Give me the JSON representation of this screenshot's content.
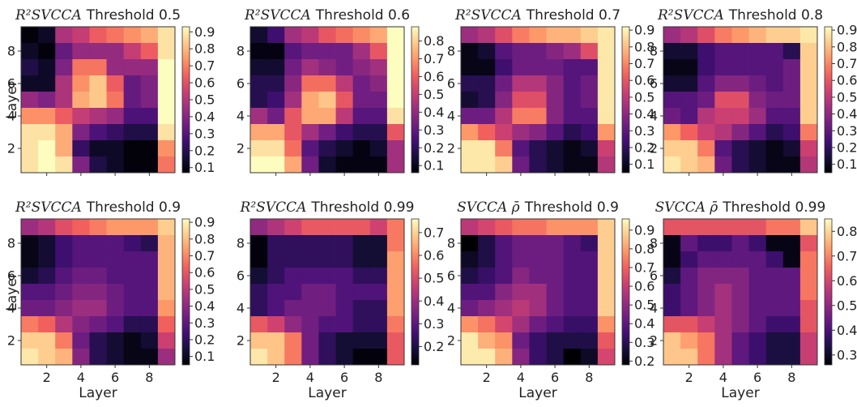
{
  "figure": {
    "xlabel": "Layer",
    "ylabel": "Layer"
  },
  "colormap": [
    "#000004",
    "#180f3d",
    "#440f76",
    "#721f81",
    "#9e2f7f",
    "#cd4071",
    "#f1605d",
    "#fd9668",
    "#feca8d",
    "#fcfdbf"
  ],
  "chart_data": [
    {
      "type": "heatmap",
      "title_prefix": "R²SVCCA",
      "title_text": "Threshold 0.5",
      "xlabel": "",
      "ylabel": "Layer",
      "x_ticks": [
        2,
        4,
        6,
        8
      ],
      "y_ticks": [
        2,
        4,
        6,
        8
      ],
      "colorbar": {
        "min": 0.07,
        "max": 0.93,
        "ticks": [
          0.1,
          0.2,
          0.3,
          0.4,
          0.5,
          0.6,
          0.7,
          0.8,
          0.9
        ]
      },
      "matrix": [
        [
          0.08,
          0.13,
          0.48,
          0.53,
          0.63,
          0.68,
          0.73,
          0.78,
          0.88
        ],
        [
          0.13,
          0.08,
          0.33,
          0.43,
          0.43,
          0.43,
          0.53,
          0.63,
          0.88
        ],
        [
          0.18,
          0.13,
          0.38,
          0.68,
          0.68,
          0.43,
          0.43,
          0.43,
          0.93
        ],
        [
          0.13,
          0.13,
          0.48,
          0.73,
          0.83,
          0.63,
          0.33,
          0.38,
          0.93
        ],
        [
          0.43,
          0.38,
          0.48,
          0.78,
          0.83,
          0.68,
          0.33,
          0.38,
          0.93
        ],
        [
          0.73,
          0.73,
          0.63,
          0.53,
          0.48,
          0.43,
          0.28,
          0.28,
          0.93
        ],
        [
          0.88,
          0.88,
          0.78,
          0.38,
          0.28,
          0.23,
          0.18,
          0.18,
          0.88
        ],
        [
          0.88,
          0.93,
          0.78,
          0.23,
          0.13,
          0.13,
          0.08,
          0.08,
          0.73
        ],
        [
          0.88,
          0.93,
          0.88,
          0.38,
          0.18,
          0.13,
          0.08,
          0.08,
          0.68
        ]
      ]
    },
    {
      "type": "heatmap",
      "title_prefix": "R²SVCCA",
      "title_text": "Threshold 0.6",
      "xlabel": "",
      "ylabel": "",
      "x_ticks": [
        2,
        4,
        6,
        8
      ],
      "y_ticks": [
        2,
        4,
        6,
        8
      ],
      "colorbar": {
        "min": 0.06,
        "max": 0.88,
        "ticks": [
          0.1,
          0.2,
          0.3,
          0.4,
          0.5,
          0.6,
          0.7,
          0.8
        ]
      },
      "matrix": [
        [
          0.13,
          0.23,
          0.43,
          0.48,
          0.58,
          0.63,
          0.68,
          0.73,
          0.88
        ],
        [
          0.08,
          0.08,
          0.28,
          0.33,
          0.33,
          0.33,
          0.43,
          0.58,
          0.88
        ],
        [
          0.13,
          0.13,
          0.33,
          0.43,
          0.38,
          0.33,
          0.38,
          0.43,
          0.88
        ],
        [
          0.18,
          0.18,
          0.38,
          0.63,
          0.63,
          0.48,
          0.33,
          0.38,
          0.88
        ],
        [
          0.18,
          0.23,
          0.43,
          0.73,
          0.78,
          0.58,
          0.33,
          0.33,
          0.88
        ],
        [
          0.43,
          0.33,
          0.58,
          0.73,
          0.73,
          0.48,
          0.28,
          0.28,
          0.83
        ],
        [
          0.73,
          0.73,
          0.58,
          0.43,
          0.33,
          0.23,
          0.18,
          0.18,
          0.58
        ],
        [
          0.83,
          0.83,
          0.63,
          0.28,
          0.18,
          0.13,
          0.08,
          0.13,
          0.43
        ],
        [
          0.88,
          0.88,
          0.73,
          0.33,
          0.13,
          0.08,
          0.08,
          0.08,
          0.43
        ]
      ]
    },
    {
      "type": "heatmap",
      "title_prefix": "R²SVCCA",
      "title_text": "Threshold 0.7",
      "xlabel": "",
      "ylabel": "",
      "x_ticks": [
        2,
        4,
        6,
        8
      ],
      "y_ticks": [
        2,
        4,
        6,
        8
      ],
      "colorbar": {
        "min": 0.05,
        "max": 0.92,
        "ticks": [
          0.1,
          0.2,
          0.3,
          0.4,
          0.5,
          0.6,
          0.7,
          0.8,
          0.9
        ]
      },
      "matrix": [
        [
          0.43,
          0.48,
          0.58,
          0.68,
          0.73,
          0.78,
          0.78,
          0.83,
          0.88
        ],
        [
          0.08,
          0.13,
          0.28,
          0.33,
          0.33,
          0.38,
          0.43,
          0.58,
          0.88
        ],
        [
          0.08,
          0.08,
          0.23,
          0.33,
          0.33,
          0.33,
          0.28,
          0.28,
          0.88
        ],
        [
          0.18,
          0.18,
          0.33,
          0.48,
          0.48,
          0.38,
          0.28,
          0.33,
          0.88
        ],
        [
          0.13,
          0.18,
          0.38,
          0.58,
          0.58,
          0.38,
          0.28,
          0.33,
          0.88
        ],
        [
          0.33,
          0.33,
          0.48,
          0.68,
          0.68,
          0.38,
          0.28,
          0.28,
          0.88
        ],
        [
          0.73,
          0.63,
          0.53,
          0.43,
          0.38,
          0.28,
          0.18,
          0.23,
          0.73
        ],
        [
          0.88,
          0.88,
          0.68,
          0.28,
          0.18,
          0.13,
          0.08,
          0.13,
          0.53
        ],
        [
          0.88,
          0.88,
          0.83,
          0.33,
          0.18,
          0.13,
          0.08,
          0.08,
          0.48
        ]
      ]
    },
    {
      "type": "heatmap",
      "title_prefix": "R²SVCCA",
      "title_text": "Threshold 0.8",
      "xlabel": "",
      "ylabel": "",
      "x_ticks": [
        2,
        4,
        6,
        8
      ],
      "y_ticks": [
        2,
        4,
        6,
        8
      ],
      "colorbar": {
        "min": 0.05,
        "max": 0.92,
        "ticks": [
          0.1,
          0.2,
          0.3,
          0.4,
          0.5,
          0.6,
          0.7,
          0.8,
          0.9
        ]
      },
      "matrix": [
        [
          0.43,
          0.48,
          0.58,
          0.68,
          0.73,
          0.78,
          0.83,
          0.83,
          0.88
        ],
        [
          0.13,
          0.13,
          0.23,
          0.28,
          0.28,
          0.28,
          0.28,
          0.18,
          0.83
        ],
        [
          0.08,
          0.08,
          0.23,
          0.28,
          0.28,
          0.28,
          0.28,
          0.33,
          0.83
        ],
        [
          0.13,
          0.13,
          0.28,
          0.38,
          0.38,
          0.33,
          0.28,
          0.33,
          0.83
        ],
        [
          0.28,
          0.28,
          0.33,
          0.58,
          0.58,
          0.38,
          0.33,
          0.33,
          0.83
        ],
        [
          0.33,
          0.28,
          0.48,
          0.53,
          0.53,
          0.43,
          0.28,
          0.28,
          0.83
        ],
        [
          0.73,
          0.63,
          0.53,
          0.48,
          0.38,
          0.28,
          0.18,
          0.23,
          0.68
        ],
        [
          0.83,
          0.83,
          0.68,
          0.28,
          0.18,
          0.13,
          0.08,
          0.13,
          0.53
        ],
        [
          0.88,
          0.83,
          0.78,
          0.33,
          0.18,
          0.13,
          0.08,
          0.08,
          0.48
        ]
      ]
    },
    {
      "type": "heatmap",
      "title_prefix": "R²SVCCA",
      "title_text": "Threshold 0.9",
      "xlabel": "Layer",
      "ylabel": "Layer",
      "x_ticks": [
        2,
        4,
        6,
        8
      ],
      "y_ticks": [
        2,
        4,
        6,
        8
      ],
      "colorbar": {
        "min": 0.05,
        "max": 0.92,
        "ticks": [
          0.1,
          0.2,
          0.3,
          0.4,
          0.5,
          0.6,
          0.7,
          0.8,
          0.9
        ]
      },
      "matrix": [
        [
          0.43,
          0.48,
          0.58,
          0.63,
          0.68,
          0.73,
          0.73,
          0.73,
          0.83
        ],
        [
          0.08,
          0.13,
          0.23,
          0.28,
          0.28,
          0.28,
          0.23,
          0.18,
          0.78
        ],
        [
          0.08,
          0.13,
          0.23,
          0.28,
          0.28,
          0.28,
          0.28,
          0.28,
          0.78
        ],
        [
          0.13,
          0.18,
          0.28,
          0.33,
          0.33,
          0.28,
          0.28,
          0.28,
          0.78
        ],
        [
          0.28,
          0.28,
          0.33,
          0.38,
          0.38,
          0.33,
          0.28,
          0.28,
          0.78
        ],
        [
          0.33,
          0.33,
          0.38,
          0.43,
          0.43,
          0.33,
          0.28,
          0.28,
          0.73
        ],
        [
          0.68,
          0.63,
          0.48,
          0.38,
          0.33,
          0.28,
          0.18,
          0.18,
          0.63
        ],
        [
          0.83,
          0.83,
          0.68,
          0.33,
          0.18,
          0.13,
          0.08,
          0.13,
          0.53
        ],
        [
          0.88,
          0.83,
          0.78,
          0.38,
          0.18,
          0.13,
          0.08,
          0.08,
          0.43
        ]
      ]
    },
    {
      "type": "heatmap",
      "title_prefix": "R²SVCCA",
      "title_text": "Threshold 0.99",
      "xlabel": "Layer",
      "ylabel": "",
      "x_ticks": [
        2,
        4,
        6,
        8
      ],
      "y_ticks": [
        2,
        4,
        6,
        8
      ],
      "colorbar": {
        "min": 0.12,
        "max": 0.76,
        "ticks": [
          0.2,
          0.3,
          0.4,
          0.5,
          0.6,
          0.7
        ]
      },
      "matrix": [
        [
          0.38,
          0.43,
          0.48,
          0.53,
          0.53,
          0.53,
          0.53,
          0.48,
          0.58
        ],
        [
          0.13,
          0.23,
          0.23,
          0.23,
          0.23,
          0.23,
          0.18,
          0.18,
          0.58
        ],
        [
          0.13,
          0.23,
          0.23,
          0.23,
          0.23,
          0.23,
          0.18,
          0.18,
          0.63
        ],
        [
          0.18,
          0.23,
          0.28,
          0.28,
          0.28,
          0.28,
          0.23,
          0.23,
          0.63
        ],
        [
          0.23,
          0.28,
          0.28,
          0.33,
          0.33,
          0.28,
          0.28,
          0.28,
          0.63
        ],
        [
          0.23,
          0.28,
          0.33,
          0.33,
          0.33,
          0.28,
          0.23,
          0.23,
          0.63
        ],
        [
          0.53,
          0.48,
          0.38,
          0.33,
          0.28,
          0.28,
          0.23,
          0.23,
          0.58
        ],
        [
          0.68,
          0.68,
          0.58,
          0.33,
          0.23,
          0.18,
          0.18,
          0.18,
          0.53
        ],
        [
          0.73,
          0.68,
          0.58,
          0.33,
          0.23,
          0.18,
          0.13,
          0.13,
          0.53
        ]
      ]
    },
    {
      "type": "heatmap",
      "title_prefix": "SVCCA ρ̄",
      "title_text": "Threshold 0.9",
      "xlabel": "Layer",
      "ylabel": "",
      "x_ticks": [
        2,
        4,
        6,
        8
      ],
      "y_ticks": [
        2,
        4,
        6,
        8
      ],
      "colorbar": {
        "min": 0.18,
        "max": 0.96,
        "ticks": [
          0.2,
          0.3,
          0.4,
          0.5,
          0.6,
          0.7,
          0.8,
          0.9
        ]
      },
      "matrix": [
        [
          0.58,
          0.63,
          0.68,
          0.73,
          0.73,
          0.78,
          0.78,
          0.78,
          0.88
        ],
        [
          0.18,
          0.28,
          0.38,
          0.43,
          0.43,
          0.43,
          0.38,
          0.33,
          0.88
        ],
        [
          0.23,
          0.28,
          0.38,
          0.43,
          0.43,
          0.43,
          0.38,
          0.38,
          0.88
        ],
        [
          0.28,
          0.33,
          0.38,
          0.48,
          0.43,
          0.43,
          0.38,
          0.38,
          0.88
        ],
        [
          0.38,
          0.38,
          0.48,
          0.53,
          0.53,
          0.43,
          0.38,
          0.38,
          0.88
        ],
        [
          0.43,
          0.48,
          0.53,
          0.58,
          0.53,
          0.43,
          0.38,
          0.38,
          0.88
        ],
        [
          0.78,
          0.73,
          0.63,
          0.53,
          0.43,
          0.38,
          0.33,
          0.33,
          0.78
        ],
        [
          0.93,
          0.83,
          0.78,
          0.43,
          0.33,
          0.28,
          0.28,
          0.28,
          0.68
        ],
        [
          0.93,
          0.93,
          0.83,
          0.48,
          0.33,
          0.28,
          0.18,
          0.23,
          0.63
        ]
      ]
    },
    {
      "type": "heatmap",
      "title_prefix": "SVCCA ρ̄",
      "title_text": "Threshold 0.99",
      "xlabel": "Layer",
      "ylabel": "",
      "x_ticks": [
        2,
        4,
        6,
        8
      ],
      "y_ticks": [
        2,
        4,
        6,
        8
      ],
      "colorbar": {
        "min": 0.26,
        "max": 0.85,
        "ticks": [
          0.3,
          0.4,
          0.5,
          0.6,
          0.7,
          0.8
        ]
      },
      "matrix": [
        [
          0.63,
          0.63,
          0.63,
          0.63,
          0.63,
          0.63,
          0.68,
          0.68,
          0.78
        ],
        [
          0.28,
          0.43,
          0.38,
          0.38,
          0.43,
          0.38,
          0.28,
          0.28,
          0.63
        ],
        [
          0.28,
          0.38,
          0.43,
          0.43,
          0.43,
          0.43,
          0.38,
          0.28,
          0.68
        ],
        [
          0.33,
          0.43,
          0.48,
          0.48,
          0.48,
          0.43,
          0.43,
          0.43,
          0.68
        ],
        [
          0.38,
          0.43,
          0.48,
          0.53,
          0.48,
          0.43,
          0.43,
          0.43,
          0.68
        ],
        [
          0.38,
          0.43,
          0.48,
          0.53,
          0.48,
          0.43,
          0.43,
          0.43,
          0.63
        ],
        [
          0.63,
          0.63,
          0.58,
          0.53,
          0.48,
          0.43,
          0.38,
          0.38,
          0.63
        ],
        [
          0.78,
          0.73,
          0.68,
          0.53,
          0.43,
          0.38,
          0.33,
          0.33,
          0.58
        ],
        [
          0.78,
          0.78,
          0.68,
          0.53,
          0.43,
          0.38,
          0.33,
          0.33,
          0.58
        ]
      ]
    }
  ]
}
